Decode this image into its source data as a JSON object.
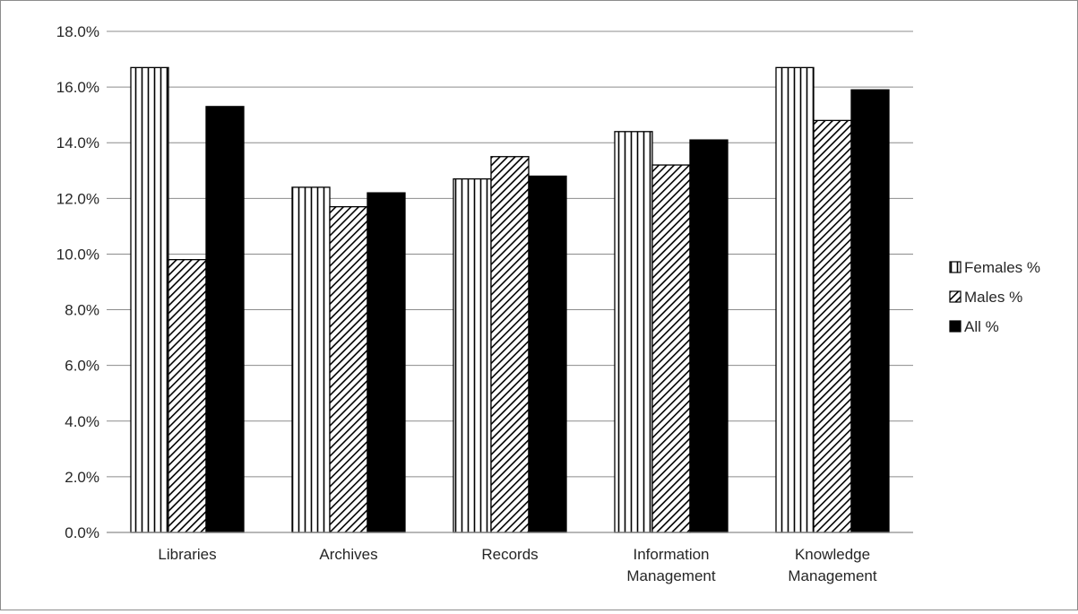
{
  "chart_data": {
    "type": "bar",
    "title": "",
    "xlabel": "",
    "ylabel": "",
    "categories": [
      [
        "Libraries"
      ],
      [
        "Archives"
      ],
      [
        "Records"
      ],
      [
        "Information",
        "Management"
      ],
      [
        "Knowledge",
        "Management"
      ]
    ],
    "series": [
      {
        "name": "Females %",
        "pattern": "vertical-lines",
        "values": [
          16.7,
          12.4,
          12.7,
          14.4,
          16.7
        ]
      },
      {
        "name": "Males %",
        "pattern": "diagonal-lines",
        "values": [
          9.8,
          11.7,
          13.5,
          13.2,
          14.8
        ]
      },
      {
        "name": "All %",
        "pattern": "solid",
        "values": [
          15.3,
          12.2,
          12.8,
          14.1,
          15.9
        ]
      }
    ],
    "ylim": [
      0,
      18
    ],
    "yticks": [
      0,
      2,
      4,
      6,
      8,
      10,
      12,
      14,
      16,
      18
    ],
    "ytick_format": "0.0%",
    "grid": true,
    "legend_position": "right",
    "colors": {
      "bar_edge": "#000000",
      "grid": "#8c8c8c",
      "fill_light": "#ffffff",
      "fill_dark": "#000000"
    }
  }
}
